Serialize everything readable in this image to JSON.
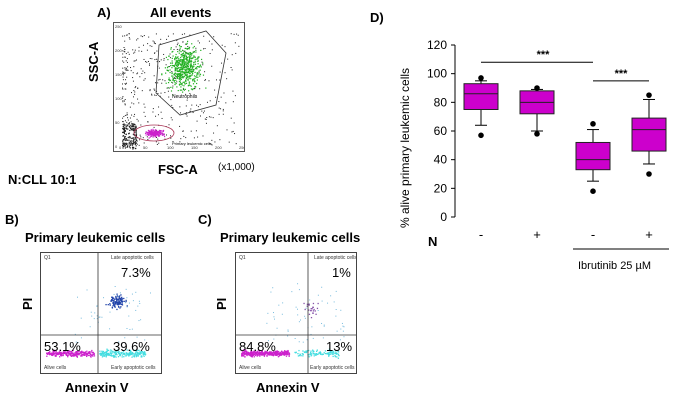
{
  "panel_a": {
    "letter": "A)",
    "title": "All events",
    "ylabel": "SSC-A",
    "xlabel": "FSC-A",
    "x_multiplier": "(x1,000)",
    "sample_label": "N:CLL 10:1",
    "x_ticks": [
      "0",
      "50",
      "100",
      "150",
      "200",
      "250"
    ],
    "y_ticks": [
      "0",
      "50",
      "100",
      "150",
      "200",
      "250"
    ],
    "gate_neutrophils": "Neutrophils",
    "gate_leukemic": "Primary leukemic cells",
    "colors": {
      "neutrophils": "#22b022",
      "leukemic": "#cc22cc",
      "background": "#222222"
    }
  },
  "panel_b": {
    "letter": "B)",
    "title": "Primary leukemic cells",
    "ylabel": "PI",
    "xlabel": "Annexin V",
    "q_late": "7.3%",
    "q_alive": "53.1%",
    "q_early": "39.6%",
    "label_q1": "Q1",
    "label_late": "Late apoptotic cells",
    "label_alive": "Alive cells",
    "label_early": "Early apoptotic cells"
  },
  "panel_c": {
    "letter": "C)",
    "title": "Primary leukemic cells",
    "ylabel": "PI",
    "xlabel": "Annexin V",
    "q_late": "1%",
    "q_alive": "84.8%",
    "q_early": "13%",
    "label_q1": "Q1",
    "label_late": "Late apoptotic cells",
    "label_alive": "Alive cells",
    "label_early": "Early apoptotic cells"
  },
  "chart_data": {
    "type": "box",
    "letter": "D)",
    "ylabel": "% alive primary leukemic cells",
    "ylim": [
      0,
      120
    ],
    "y_ticks": [
      0,
      20,
      40,
      60,
      80,
      100,
      120
    ],
    "row_label": "N",
    "categories": [
      "-",
      "+",
      "-",
      "+"
    ],
    "treatment_label": "Ibrutinib 25 µM",
    "significance": [
      {
        "from": 0,
        "to": 2,
        "label": "***"
      },
      {
        "from": 2,
        "to": 3,
        "label": "***"
      }
    ],
    "boxes": [
      {
        "min": 64,
        "q1": 75,
        "median": 86,
        "q3": 93,
        "max": 95,
        "outliers": [
          97,
          57
        ]
      },
      {
        "min": 60,
        "q1": 72,
        "median": 80,
        "q3": 88,
        "max": 89,
        "outliers": [
          90,
          58
        ]
      },
      {
        "min": 25,
        "q1": 33,
        "median": 40,
        "q3": 52,
        "max": 61,
        "outliers": [
          65,
          18
        ]
      },
      {
        "min": 37,
        "q1": 46,
        "median": 61,
        "q3": 69,
        "max": 82,
        "outliers": [
          85,
          30
        ]
      }
    ],
    "box_color": "#cc00cc"
  }
}
